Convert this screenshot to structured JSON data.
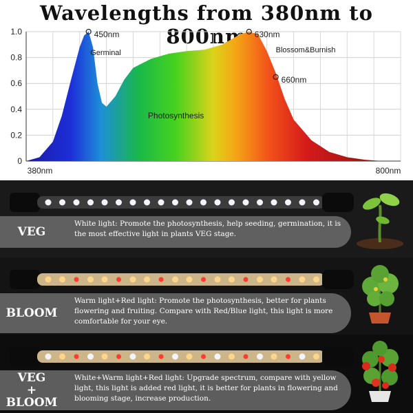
{
  "title": "Wavelengths from 380nm to 800nm",
  "chart_data": {
    "type": "area",
    "title": "Wavelengths from 380nm to 800nm",
    "xlabel": "",
    "ylabel": "",
    "x_tick_labels": [
      "380nm",
      "800nm"
    ],
    "xlim": [
      380,
      800
    ],
    "ylim": [
      0,
      1.0
    ],
    "y_ticks": [
      "0",
      "0.2",
      "0.4",
      "0.6",
      "0.8",
      "1.0"
    ],
    "grid": true,
    "curve": {
      "x": [
        380,
        395,
        410,
        420,
        430,
        440,
        445,
        450,
        455,
        460,
        465,
        470,
        480,
        490,
        500,
        520,
        540,
        560,
        580,
        600,
        610,
        620,
        630,
        640,
        650,
        660,
        670,
        680,
        700,
        720,
        740,
        760,
        780,
        800
      ],
      "y": [
        0.0,
        0.03,
        0.15,
        0.35,
        0.62,
        0.88,
        0.97,
        1.0,
        0.88,
        0.6,
        0.45,
        0.42,
        0.5,
        0.63,
        0.72,
        0.79,
        0.83,
        0.85,
        0.86,
        0.9,
        0.94,
        0.98,
        1.0,
        0.98,
        0.85,
        0.68,
        0.48,
        0.32,
        0.16,
        0.07,
        0.03,
        0.01,
        0.0,
        0.0
      ]
    },
    "annotations": [
      {
        "x": 450,
        "y": 1.0,
        "label": "450nm"
      },
      {
        "x": 630,
        "y": 1.0,
        "label": "630nm"
      },
      {
        "x": 660,
        "y": 0.65,
        "label": "660nm"
      }
    ],
    "region_labels": [
      "Germinal",
      "Blossom&Burnish",
      "Photosynthesis"
    ]
  },
  "modes": [
    {
      "badge_lines": [
        "VEG"
      ],
      "text": "White light: Promote the photosynthesis, help seeding, germination, it is the most effective light in plants VEG stage."
    },
    {
      "badge_lines": [
        "BLOOM"
      ],
      "text": "Warm light+Red light: Promote the photosynthesis, better for plants flowering and fruiting. Compare with Red/Blue light, this light is more comfortable for your eye."
    },
    {
      "badge_lines": [
        "VEG",
        "+",
        "BLOOM"
      ],
      "text": "White+Warm light+Red light: Upgrade spectrum, compare with yellow light, this light is added red light, it is better for plants in flowering and blooming stage, increase production."
    }
  ],
  "colors": {
    "veg_led": "#f4f4ff",
    "warm_led": "#ffd58a",
    "red_led": "#ff3b2f",
    "panel": "#7a7a7a"
  }
}
